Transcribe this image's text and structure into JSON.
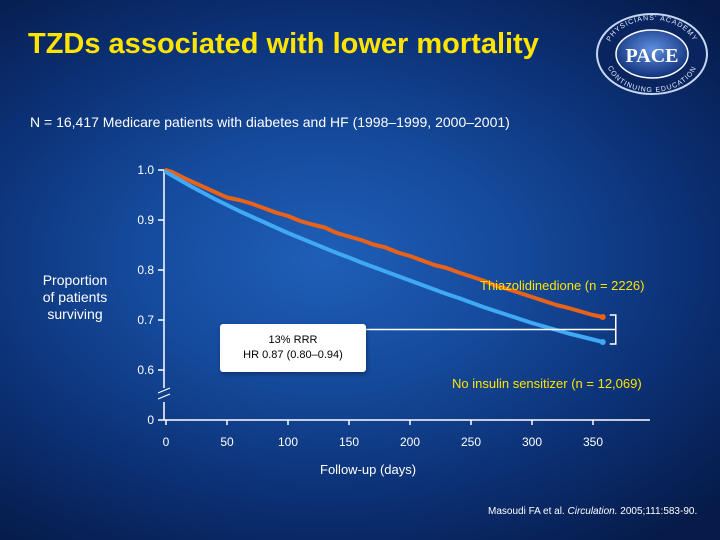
{
  "title": "TZDs associated with lower mortality",
  "subtitle": "N = 16,417 Medicare patients with diabetes and HF (1998–1999, 2000–2001)",
  "logo": {
    "top_text": "PHYSICIANS' ACADEMY",
    "main": "PACE",
    "bottom_text": "CONTINUING EDUCATION"
  },
  "ylabel": [
    "Proportion",
    "of patients",
    "surviving"
  ],
  "xlabel": "Follow-up (days)",
  "annotation": {
    "line1": "13% RRR",
    "line2": "HR 0.87 (0.80–0.94)"
  },
  "citation": {
    "authors": "Masoudi FA et al. ",
    "journal": "Circulation.",
    "details": " 2005;111:583-90."
  },
  "chart_data": {
    "type": "line",
    "title": "TZDs associated with lower mortality",
    "xlabel": "Follow-up (days)",
    "ylabel": "Proportion of patients surviving",
    "xlim": [
      0,
      365
    ],
    "ylim": [
      0.6,
      1.0
    ],
    "y_ticks": [
      "1.0",
      "0.9",
      "0.8",
      "0.7",
      "0.6",
      "0"
    ],
    "y_tick_values": [
      1.0,
      0.9,
      0.8,
      0.7,
      0.6,
      null
    ],
    "x_ticks": [
      "0",
      "50",
      "100",
      "150",
      "200",
      "250",
      "300",
      "350"
    ],
    "x_tick_values": [
      0,
      50,
      100,
      150,
      200,
      250,
      300,
      350
    ],
    "axis_break": true,
    "series": [
      {
        "name": "Thiazolidinedione (n = 2226)",
        "color": "#e8621a",
        "x": [
          0,
          5,
          10,
          20,
          30,
          40,
          50,
          60,
          70,
          80,
          90,
          100,
          110,
          120,
          130,
          140,
          150,
          160,
          170,
          180,
          190,
          200,
          210,
          220,
          230,
          240,
          250,
          260,
          270,
          280,
          290,
          300,
          310,
          320,
          330,
          340,
          350,
          358
        ],
        "values": [
          1.0,
          0.996,
          0.99,
          0.978,
          0.967,
          0.956,
          0.945,
          0.94,
          0.933,
          0.924,
          0.915,
          0.908,
          0.898,
          0.891,
          0.885,
          0.874,
          0.867,
          0.86,
          0.851,
          0.845,
          0.835,
          0.828,
          0.819,
          0.81,
          0.804,
          0.795,
          0.787,
          0.779,
          0.769,
          0.762,
          0.754,
          0.746,
          0.738,
          0.73,
          0.724,
          0.717,
          0.71,
          0.706
        ]
      },
      {
        "name": "No insulin sensitizer (n = 12,069)",
        "color": "#3fa9f5",
        "x": [
          0,
          5,
          10,
          20,
          30,
          40,
          50,
          60,
          70,
          80,
          90,
          100,
          110,
          120,
          130,
          140,
          150,
          160,
          170,
          180,
          190,
          200,
          210,
          220,
          230,
          240,
          250,
          260,
          270,
          280,
          290,
          300,
          310,
          320,
          330,
          340,
          350,
          358
        ],
        "values": [
          0.996,
          0.989,
          0.982,
          0.968,
          0.955,
          0.942,
          0.93,
          0.918,
          0.907,
          0.896,
          0.885,
          0.874,
          0.864,
          0.854,
          0.844,
          0.834,
          0.825,
          0.815,
          0.806,
          0.797,
          0.788,
          0.779,
          0.77,
          0.761,
          0.752,
          0.744,
          0.735,
          0.726,
          0.718,
          0.71,
          0.702,
          0.694,
          0.687,
          0.68,
          0.673,
          0.667,
          0.661,
          0.656
        ]
      }
    ],
    "legend_placement": "inline-right",
    "grid": false
  }
}
